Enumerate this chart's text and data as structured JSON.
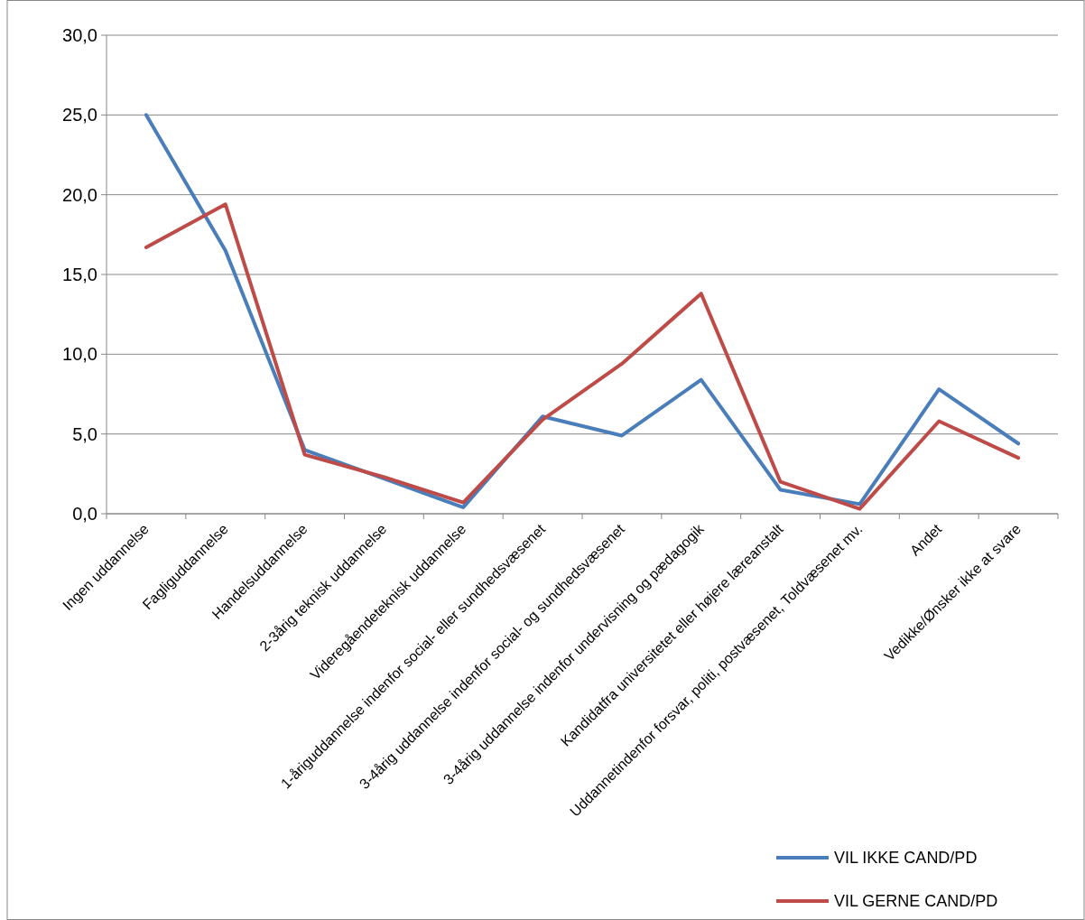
{
  "chart_data": {
    "type": "line",
    "categories": [
      "Ingen uddannelse",
      "Fagliguddannelse",
      "Handelsuddannelse",
      "2-3årig teknisk uddannelse",
      "Videregåendeteknisk uddannelse",
      "1-åriguddannelse indenfor social- eller sundhedsvæsenet",
      "3-4årig uddannelse indenfor social- og sundhedsvæsenet",
      "3-4årig uddannelse indenfor undervisning og pædagogik",
      "Kandidatfra universitetet eller højere læreanstalt",
      "Uddannetindenfor forsvar, politi, postvæsenet, Toldvæsenet mv.",
      "Andet",
      "Vedikke/Ønsker ikke at svare"
    ],
    "series": [
      {
        "name": "VIL IKKE CAND/PD",
        "color": "#4a7ebb",
        "values": [
          25.0,
          16.5,
          4.0,
          2.2,
          0.4,
          6.1,
          4.9,
          8.4,
          1.5,
          0.6,
          7.8,
          4.4
        ]
      },
      {
        "name": "VIL GERNE CAND/PD",
        "color": "#be4b48",
        "values": [
          16.7,
          19.4,
          3.7,
          2.3,
          0.7,
          5.9,
          9.4,
          13.8,
          2.0,
          0.3,
          5.8,
          3.5
        ]
      }
    ],
    "ylim": [
      0,
      30
    ],
    "yticks": [
      {
        "value": 0,
        "label": "0,0"
      },
      {
        "value": 5,
        "label": "5,0"
      },
      {
        "value": 10,
        "label": "10,0"
      },
      {
        "value": 15,
        "label": "15,0"
      },
      {
        "value": 20,
        "label": "20,0"
      },
      {
        "value": 25,
        "label": "25,0"
      },
      {
        "value": 30,
        "label": "30,0"
      }
    ],
    "grid": "y",
    "legend": "bottom right",
    "marker": "none",
    "line_style": "solid"
  }
}
